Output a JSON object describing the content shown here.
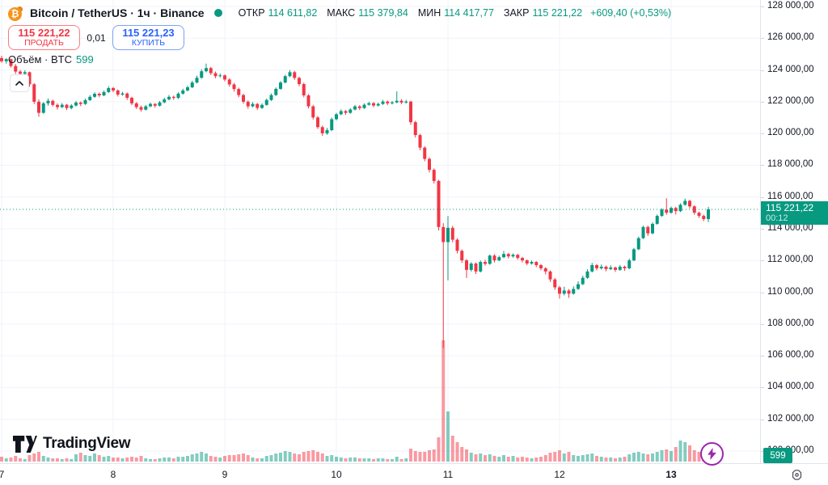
{
  "header": {
    "symbol_title": "Bitcoin / TetherUS · 1ч · Binance",
    "coin_glyph": "₿",
    "open_label": "ОТКР",
    "open_value": "114 611,82",
    "high_label": "МАКС",
    "high_value": "115 379,84",
    "low_label": "МИН",
    "low_value": "114 417,77",
    "close_label": "ЗАКР",
    "close_value": "115 221,22",
    "change_value": "+609,40 (+0,53%)"
  },
  "trade_buttons": {
    "sell_price": "115 221,22",
    "sell_label": "ПРОДАТЬ",
    "spread": "0,01",
    "buy_price": "115 221,23",
    "buy_label": "КУПИТЬ"
  },
  "study_row": {
    "name": "Объём · BTC",
    "value": "599"
  },
  "price_axis": {
    "last_price_label": "115 221,22",
    "countdown": "00:12",
    "volume_label": "599",
    "labels": [
      {
        "text": "128 000,00",
        "value": 128000
      },
      {
        "text": "126 000,00",
        "value": 126000
      },
      {
        "text": "124 000,00",
        "value": 124000
      },
      {
        "text": "122 000,00",
        "value": 122000
      },
      {
        "text": "120 000,00",
        "value": 120000
      },
      {
        "text": "118 000,00",
        "value": 118000
      },
      {
        "text": "116 000,00",
        "value": 116000
      },
      {
        "text": "114 000,00",
        "value": 114000
      },
      {
        "text": "112 000,00",
        "value": 112000
      },
      {
        "text": "110 000,00",
        "value": 110000
      },
      {
        "text": "108 000,00",
        "value": 108000
      },
      {
        "text": "106 000,00",
        "value": 106000
      },
      {
        "text": "104 000,00",
        "value": 104000
      },
      {
        "text": "102 000,00",
        "value": 102000
      },
      {
        "text": "100 000,00",
        "value": 100000
      }
    ]
  },
  "watermark": "TradingView",
  "colors": {
    "up": "#089981",
    "down": "#f23645",
    "vol_up": "rgba(8,153,129,0.5)",
    "vol_down": "rgba(242,54,69,0.5)",
    "grid": "#f0f3fa",
    "sell_red": "#f23645",
    "buy_blue": "#2962ff",
    "label_bg": "#089981",
    "purple": "#9c27b0",
    "bitcoin_orange": "#f7931a"
  },
  "chart_data": {
    "type": "candlestick",
    "title": "Bitcoin / TetherUS 1h Binance",
    "ylabel": "Price (USDT)",
    "ylim": [
      100000,
      128000
    ],
    "y_tick_step": 2000,
    "last_price": 115221.22,
    "countdown": "00:12",
    "volume_btc": 599,
    "readout": {
      "open": 114611.82,
      "high": 115379.84,
      "low": 114417.77,
      "close": 115221.22,
      "change": 609.4,
      "change_pct": 0.53
    },
    "x_day_ticks": [
      {
        "label": "7",
        "index": 0
      },
      {
        "label": "8",
        "index": 24
      },
      {
        "label": "9",
        "index": 48
      },
      {
        "label": "10",
        "index": 72
      },
      {
        "label": "11",
        "index": 96
      },
      {
        "label": "12",
        "index": 120
      },
      {
        "label": "13",
        "index": 144,
        "bold": true
      }
    ],
    "candles": [
      [
        124750,
        124900,
        124450,
        124550
      ],
      [
        124550,
        124750,
        124400,
        124680
      ],
      [
        124680,
        124720,
        124150,
        124250
      ],
      [
        124250,
        124380,
        123750,
        123900
      ],
      [
        123900,
        124000,
        123600,
        123760
      ],
      [
        123760,
        123980,
        123700,
        123860
      ],
      [
        123860,
        123900,
        122950,
        123100
      ],
      [
        123100,
        123180,
        121850,
        122000
      ],
      [
        122000,
        122150,
        121050,
        121300
      ],
      [
        121300,
        121980,
        121250,
        121900
      ],
      [
        121900,
        122200,
        121750,
        122060
      ],
      [
        122060,
        122120,
        121700,
        121800
      ],
      [
        121800,
        121900,
        121500,
        121660
      ],
      [
        121660,
        121920,
        121600,
        121810
      ],
      [
        121810,
        121860,
        121480,
        121600
      ],
      [
        121600,
        121850,
        121520,
        121760
      ],
      [
        121760,
        122050,
        121700,
        121950
      ],
      [
        121950,
        122020,
        121720,
        121860
      ],
      [
        121860,
        122200,
        121800,
        122100
      ],
      [
        122100,
        122420,
        122050,
        122310
      ],
      [
        122310,
        122600,
        122250,
        122500
      ],
      [
        122500,
        122580,
        122280,
        122400
      ],
      [
        122400,
        122700,
        122350,
        122610
      ],
      [
        122610,
        122980,
        122550,
        122860
      ],
      [
        122860,
        122940,
        122600,
        122710
      ],
      [
        122710,
        122780,
        122330,
        122450
      ],
      [
        122450,
        122620,
        122380,
        122520
      ],
      [
        122520,
        122580,
        122120,
        122250
      ],
      [
        122250,
        122320,
        121780,
        121900
      ],
      [
        121900,
        121980,
        121540,
        121660
      ],
      [
        121660,
        121760,
        121380,
        121500
      ],
      [
        121500,
        121800,
        121450,
        121710
      ],
      [
        121710,
        121950,
        121650,
        121860
      ],
      [
        121860,
        121920,
        121620,
        121750
      ],
      [
        121750,
        122050,
        121700,
        121960
      ],
      [
        121960,
        122250,
        121900,
        122150
      ],
      [
        122150,
        122420,
        122080,
        122310
      ],
      [
        122310,
        122380,
        122120,
        122240
      ],
      [
        122240,
        122600,
        122180,
        122510
      ],
      [
        122510,
        122820,
        122450,
        122710
      ],
      [
        122710,
        123020,
        122650,
        122910
      ],
      [
        122910,
        123320,
        122860,
        123210
      ],
      [
        123210,
        123640,
        123150,
        123510
      ],
      [
        123510,
        124050,
        123450,
        123920
      ],
      [
        123920,
        124400,
        123850,
        124120
      ],
      [
        124120,
        124200,
        123680,
        123800
      ],
      [
        123800,
        123900,
        123480,
        123610
      ],
      [
        123610,
        123780,
        123520,
        123660
      ],
      [
        123660,
        123720,
        123280,
        123400
      ],
      [
        123400,
        123480,
        122950,
        123090
      ],
      [
        123090,
        123180,
        122650,
        122800
      ],
      [
        122800,
        122880,
        122280,
        122420
      ],
      [
        122420,
        122500,
        121880,
        122000
      ],
      [
        122000,
        122080,
        121560,
        121710
      ],
      [
        121710,
        121980,
        121650,
        121860
      ],
      [
        121860,
        121920,
        121480,
        121610
      ],
      [
        121610,
        121900,
        121550,
        121800
      ],
      [
        121800,
        122200,
        121750,
        122110
      ],
      [
        122110,
        122520,
        122050,
        122420
      ],
      [
        122420,
        122900,
        122360,
        122810
      ],
      [
        122810,
        123300,
        122750,
        123210
      ],
      [
        123210,
        123700,
        123150,
        123610
      ],
      [
        123610,
        124000,
        123550,
        123860
      ],
      [
        123860,
        123950,
        123380,
        123500
      ],
      [
        123500,
        123580,
        122980,
        123110
      ],
      [
        123110,
        123200,
        122280,
        122400
      ],
      [
        122400,
        122480,
        121580,
        121710
      ],
      [
        121710,
        121800,
        120880,
        121010
      ],
      [
        121010,
        121100,
        120280,
        120400
      ],
      [
        120400,
        120500,
        119850,
        120010
      ],
      [
        120010,
        120350,
        119920,
        120210
      ],
      [
        120210,
        121000,
        120150,
        120900
      ],
      [
        120900,
        121300,
        120820,
        121210
      ],
      [
        121210,
        121520,
        121150,
        121410
      ],
      [
        121410,
        121480,
        121180,
        121300
      ],
      [
        121300,
        121600,
        121240,
        121510
      ],
      [
        121510,
        121800,
        121450,
        121710
      ],
      [
        121710,
        121780,
        121480,
        121600
      ],
      [
        121600,
        121900,
        121550,
        121810
      ],
      [
        121810,
        122000,
        121750,
        121910
      ],
      [
        121910,
        121980,
        121650,
        121760
      ],
      [
        121760,
        121950,
        121700,
        121860
      ],
      [
        121860,
        122120,
        121800,
        122010
      ],
      [
        122010,
        122080,
        121790,
        121900
      ],
      [
        121900,
        122050,
        121830,
        121960
      ],
      [
        121960,
        122650,
        121900,
        122060
      ],
      [
        122060,
        122150,
        121850,
        121950
      ],
      [
        121950,
        122120,
        121880,
        122010
      ],
      [
        122010,
        122060,
        120550,
        120710
      ],
      [
        120710,
        120800,
        119750,
        119900
      ],
      [
        119900,
        119980,
        118950,
        119110
      ],
      [
        119110,
        119200,
        118250,
        118400
      ],
      [
        118400,
        118500,
        117550,
        117710
      ],
      [
        117710,
        117800,
        116850,
        117010
      ],
      [
        117010,
        117080,
        113900,
        114110
      ],
      [
        114110,
        114350,
        106500,
        113160
      ],
      [
        113160,
        114800,
        110750,
        114060
      ],
      [
        114060,
        114180,
        113150,
        113310
      ],
      [
        113310,
        113400,
        112450,
        112610
      ],
      [
        112610,
        112700,
        111850,
        112010
      ],
      [
        112010,
        112100,
        110900,
        111410
      ],
      [
        111410,
        111900,
        111300,
        111810
      ],
      [
        111810,
        111880,
        111150,
        111310
      ],
      [
        111310,
        112000,
        111250,
        111910
      ],
      [
        111910,
        112050,
        111680,
        111790
      ],
      [
        111790,
        112380,
        111730,
        112310
      ],
      [
        112310,
        112400,
        111880,
        112010
      ],
      [
        112010,
        112300,
        111950,
        112210
      ],
      [
        112210,
        112600,
        112150,
        112410
      ],
      [
        112410,
        112480,
        112130,
        112260
      ],
      [
        112260,
        112450,
        112180,
        112360
      ],
      [
        112360,
        112420,
        112050,
        112160
      ],
      [
        112160,
        112240,
        111880,
        112010
      ],
      [
        112010,
        112080,
        111700,
        111810
      ],
      [
        111810,
        112000,
        111740,
        111910
      ],
      [
        111910,
        111960,
        111580,
        111710
      ],
      [
        111710,
        111780,
        111380,
        111510
      ],
      [
        111510,
        111580,
        111120,
        111310
      ],
      [
        111310,
        111380,
        110650,
        110810
      ],
      [
        110810,
        110900,
        110150,
        110310
      ],
      [
        110310,
        110400,
        109600,
        109910
      ],
      [
        109910,
        110350,
        109800,
        110110
      ],
      [
        110110,
        110200,
        109650,
        109910
      ],
      [
        109910,
        110380,
        109850,
        110210
      ],
      [
        110210,
        110700,
        110150,
        110510
      ],
      [
        110510,
        111050,
        110450,
        110910
      ],
      [
        110910,
        111450,
        110850,
        111310
      ],
      [
        111310,
        111850,
        111250,
        111710
      ],
      [
        111710,
        111780,
        111380,
        111510
      ],
      [
        111510,
        111750,
        111430,
        111610
      ],
      [
        111610,
        111680,
        111320,
        111460
      ],
      [
        111460,
        111700,
        111400,
        111560
      ],
      [
        111560,
        111620,
        111280,
        111410
      ],
      [
        111410,
        111720,
        111350,
        111610
      ],
      [
        111610,
        111680,
        111350,
        111510
      ],
      [
        111510,
        112120,
        111450,
        112010
      ],
      [
        112010,
        112800,
        111950,
        112710
      ],
      [
        112710,
        113500,
        112650,
        113410
      ],
      [
        113410,
        114200,
        113350,
        114110
      ],
      [
        114110,
        114200,
        113550,
        113710
      ],
      [
        113710,
        114400,
        113650,
        114310
      ],
      [
        114310,
        114900,
        114250,
        114810
      ],
      [
        114810,
        115300,
        114750,
        115210
      ],
      [
        115210,
        115920,
        114880,
        115010
      ],
      [
        115010,
        115400,
        114950,
        115310
      ],
      [
        115310,
        115380,
        114890,
        115110
      ],
      [
        115110,
        115600,
        115050,
        115510
      ],
      [
        115510,
        115900,
        115450,
        115760
      ],
      [
        115760,
        115820,
        115280,
        115410
      ],
      [
        115410,
        115480,
        114880,
        115010
      ],
      [
        115010,
        115080,
        114680,
        114810
      ],
      [
        114810,
        114900,
        114480,
        114610
      ],
      [
        114612,
        115380,
        114418,
        115221
      ]
    ],
    "volumes": [
      6,
      4,
      5,
      7,
      4,
      3,
      8,
      10,
      12,
      7,
      5,
      4,
      4,
      3,
      4,
      3,
      9,
      11,
      8,
      7,
      10,
      8,
      6,
      7,
      5,
      5,
      4,
      5,
      6,
      5,
      7,
      4,
      3,
      3,
      4,
      5,
      5,
      4,
      6,
      6,
      7,
      9,
      10,
      12,
      10,
      7,
      6,
      5,
      7,
      8,
      8,
      9,
      10,
      8,
      5,
      4,
      4,
      7,
      8,
      10,
      11,
      13,
      12,
      10,
      9,
      12,
      13,
      14,
      12,
      10,
      7,
      8,
      6,
      5,
      4,
      5,
      5,
      4,
      4,
      4,
      3,
      4,
      4,
      3,
      3,
      6,
      3,
      4,
      16,
      13,
      12,
      12,
      14,
      15,
      30,
      150,
      62,
      32,
      24,
      18,
      15,
      11,
      9,
      10,
      8,
      9,
      7,
      6,
      8,
      6,
      7,
      5,
      6,
      5,
      4,
      5,
      6,
      8,
      11,
      12,
      14,
      10,
      12,
      8,
      7,
      8,
      9,
      10,
      7,
      6,
      5,
      5,
      4,
      5,
      6,
      9,
      11,
      12,
      10,
      9,
      10,
      12,
      14,
      15,
      13,
      18,
      26,
      24,
      20,
      14,
      12,
      10,
      8
    ]
  }
}
